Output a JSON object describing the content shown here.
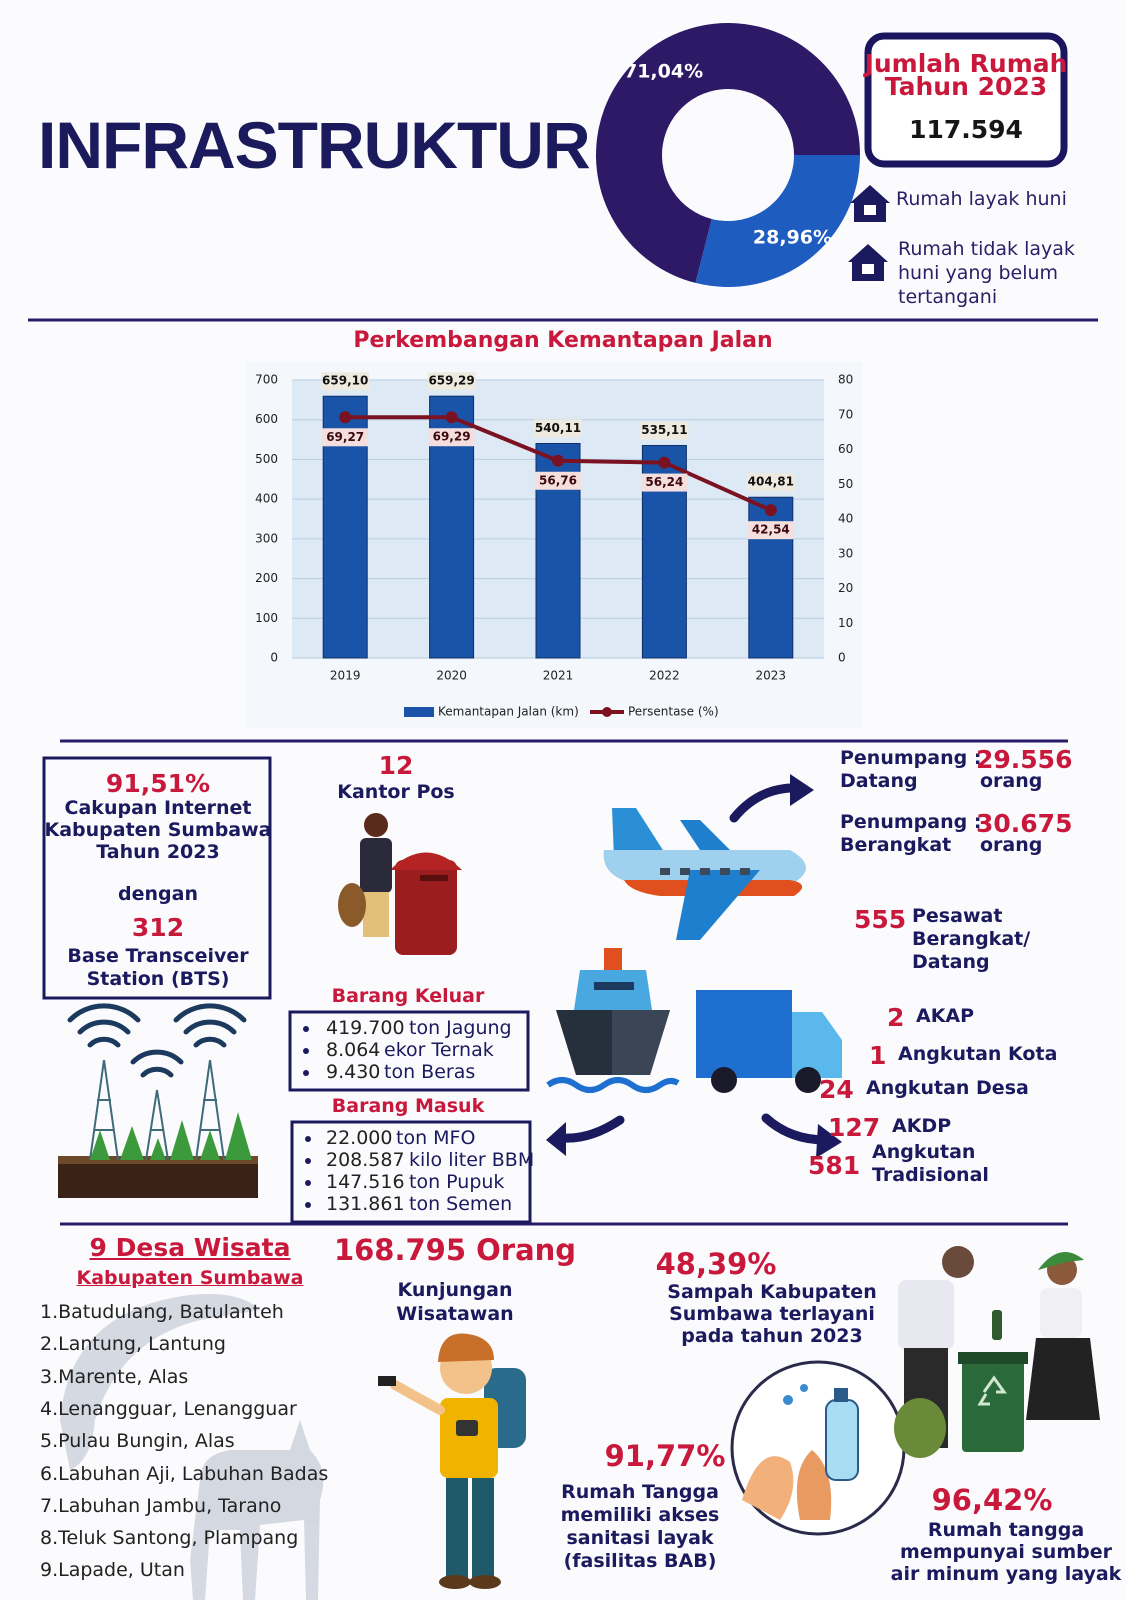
{
  "title": "INFRASTRUKTUR",
  "chart_data": [
    {
      "type": "pie",
      "categories": [
        "Rumah layak huni",
        "Rumah tidak layak huni yang belum tertangani"
      ],
      "values": [
        71.04,
        28.96
      ],
      "value_labels": [
        "71,04%",
        "28,96%"
      ],
      "colors": [
        "#2d1966",
        "#1f5cc0"
      ]
    },
    {
      "type": "bar-line",
      "title": "Perkembangan Kemantapan Jalan",
      "categories": [
        "2019",
        "2020",
        "2021",
        "2022",
        "2023"
      ],
      "series": [
        {
          "name": "Kemantapan Jalan (km)",
          "color": "#1a54a8",
          "values": [
            659.1,
            659.29,
            540.11,
            535.11,
            404.81
          ],
          "value_labels": [
            "659,10",
            "659,29",
            "540,11",
            "535,11",
            "404,81"
          ]
        },
        {
          "name": "Persentase (%)",
          "color": "#7a1222",
          "axis": "y2",
          "values": [
            69.27,
            69.29,
            56.76,
            56.24,
            42.54
          ],
          "value_labels": [
            "69,27",
            "69,29",
            "56,76",
            "56,24",
            "42,54"
          ]
        }
      ],
      "ylim": [
        0,
        700
      ],
      "yticks": [
        0,
        100,
        200,
        300,
        400,
        500,
        600,
        700
      ],
      "y2lim": [
        0,
        80
      ],
      "y2ticks": [
        0,
        10,
        20,
        30,
        40,
        50,
        60,
        70,
        80
      ],
      "grid": true
    }
  ],
  "housing": {
    "label": [
      "Jumlah Rumah",
      "Tahun 2023"
    ],
    "value": "117.594"
  },
  "internet": {
    "percent": "91,51%",
    "label": [
      "Cakupan Internet",
      "Kabupaten Sumbawa",
      "Tahun 2023"
    ],
    "connector": "dengan",
    "bts_count": "312",
    "bts_label": [
      "Base Transceiver",
      "Station (BTS)"
    ]
  },
  "post": {
    "count": "12",
    "label": "Kantor Pos"
  },
  "airport": {
    "arrivals": {
      "label": [
        "Penumpang :",
        "Datang"
      ],
      "value": "29.556",
      "unit": "orang"
    },
    "departures": {
      "label": [
        "Penumpang :",
        "Berangkat"
      ],
      "value": "30.675",
      "unit": "orang"
    },
    "flights": {
      "count": "555",
      "label": [
        "Pesawat",
        "Berangkat/",
        "Datang"
      ]
    }
  },
  "goods_out": {
    "title": "Barang Keluar",
    "items": [
      {
        "amount": "419.700",
        "desc": "ton Jagung"
      },
      {
        "amount": "8.064",
        "desc": "ekor Ternak"
      },
      {
        "amount": "9.430",
        "desc": "ton Beras"
      }
    ]
  },
  "goods_in": {
    "title": "Barang Masuk",
    "items": [
      {
        "amount": "22.000",
        "desc": "ton MFO"
      },
      {
        "amount": "208.587",
        "desc": "kilo liter BBM"
      },
      {
        "amount": "147.516",
        "desc": "ton Pupuk"
      },
      {
        "amount": "131.861",
        "desc": "ton Semen"
      }
    ]
  },
  "transport": [
    {
      "count": "2",
      "label": [
        "AKAP"
      ]
    },
    {
      "count": "1",
      "label": [
        "Angkutan Kota"
      ]
    },
    {
      "count": "24",
      "label": [
        "Angkutan Desa"
      ]
    },
    {
      "count": "127",
      "label": [
        "AKDP"
      ]
    },
    {
      "count": "581",
      "label": [
        "Angkutan",
        "Tradisional"
      ]
    }
  ],
  "tourism": {
    "title": "9 Desa Wisata",
    "subtitle": "Kabupaten Sumbawa",
    "villages": [
      "1.Batudulang, Batulanteh",
      "2.Lantung, Lantung",
      "3.Marente, Alas",
      "4.Lenangguar, Lenangguar",
      "5.Pulau Bungin, Alas",
      "6.Labuhan Aji, Labuhan Badas",
      "7.Labuhan Jambu, Tarano",
      "8.Teluk Santong, Plampang",
      "9.Lapade, Utan"
    ],
    "visitors": "168.795 Orang",
    "visitors_label": [
      "Kunjungan",
      "Wisatawan"
    ]
  },
  "waste": {
    "percent": "48,39%",
    "label": [
      "Sampah Kabupaten",
      "Sumbawa terlayani",
      "pada tahun 2023"
    ]
  },
  "sanitation": {
    "percent": "91,77%",
    "label": [
      "Rumah Tangga",
      "memiliki akses",
      "sanitasi layak",
      "(fasilitas BAB)"
    ]
  },
  "water": {
    "percent": "96,42%",
    "label": [
      "Rumah tangga",
      "mempunyai sumber",
      "air minum yang layak"
    ]
  }
}
